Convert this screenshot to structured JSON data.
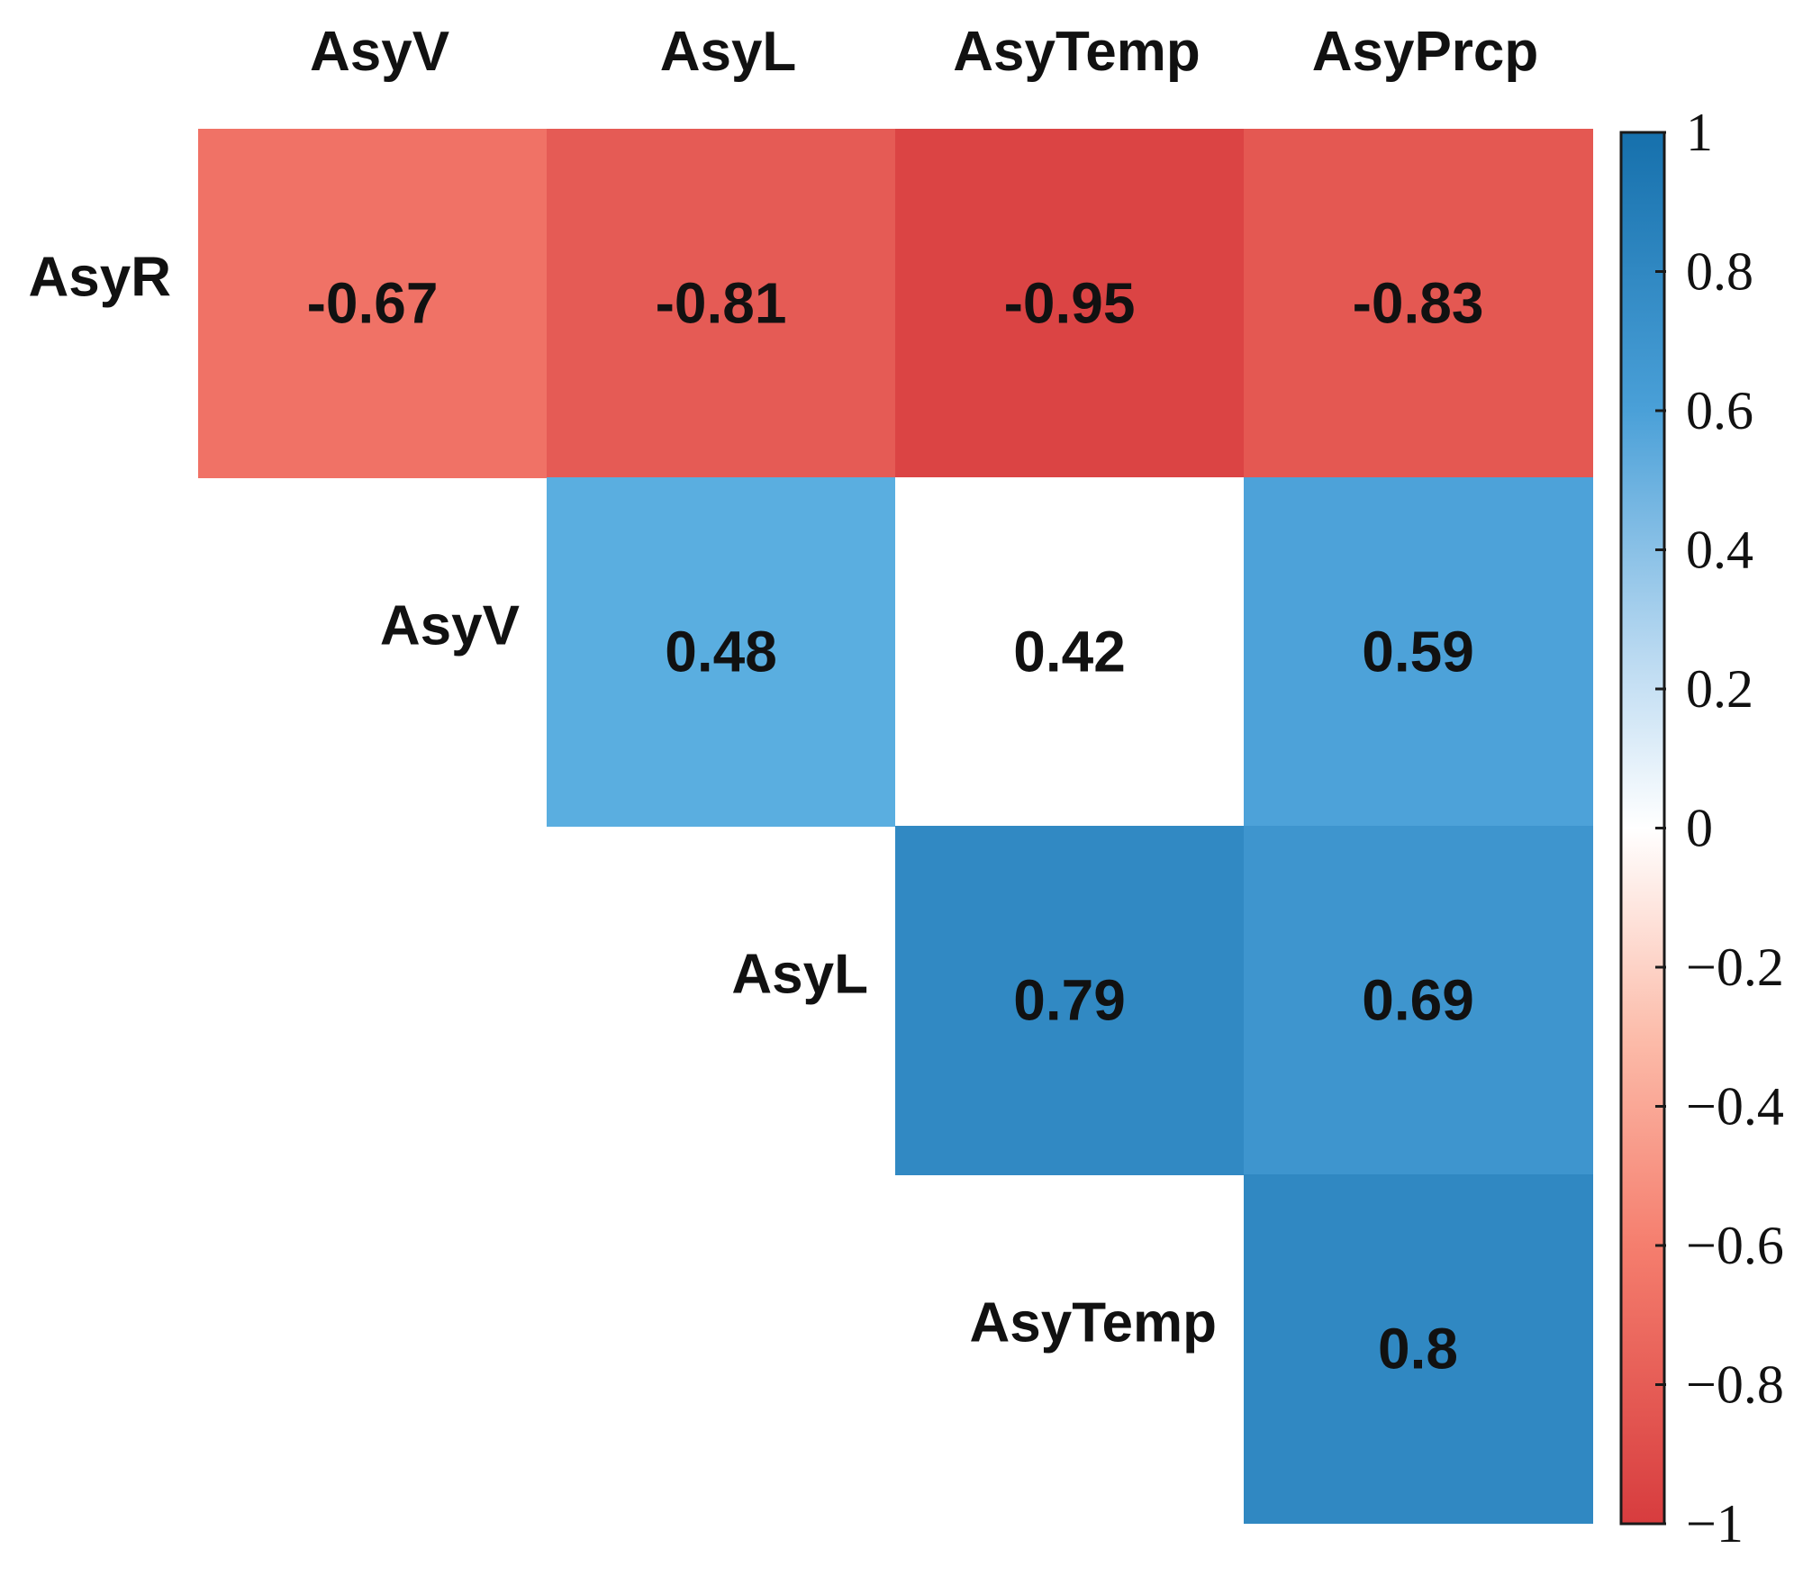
{
  "chart_data": {
    "type": "heatmap",
    "title": "",
    "columns": [
      "AsyV",
      "AsyL",
      "AsyTemp",
      "AsyPrcp"
    ],
    "rows": [
      "AsyR",
      "AsyV",
      "AsyL",
      "AsyTemp"
    ],
    "cells": [
      {
        "row": 0,
        "col": 0,
        "value": -0.67,
        "label": "-0.67"
      },
      {
        "row": 0,
        "col": 1,
        "value": -0.81,
        "label": "-0.81"
      },
      {
        "row": 0,
        "col": 2,
        "value": -0.95,
        "label": "-0.95"
      },
      {
        "row": 0,
        "col": 3,
        "value": -0.83,
        "label": "-0.83"
      },
      {
        "row": 1,
        "col": 1,
        "value": 0.48,
        "label": "0.48",
        "fill": "#5aaee0"
      },
      {
        "row": 1,
        "col": 2,
        "value": 0.42,
        "label": "0.42",
        "fill": "#ffffff"
      },
      {
        "row": 1,
        "col": 3,
        "value": 0.59,
        "label": "0.59"
      },
      {
        "row": 2,
        "col": 2,
        "value": 0.79,
        "label": "0.79"
      },
      {
        "row": 2,
        "col": 3,
        "value": 0.69,
        "label": "0.69"
      },
      {
        "row": 3,
        "col": 3,
        "value": 0.8,
        "label": "0.8"
      }
    ],
    "colorbar": {
      "range": [
        -1,
        1
      ],
      "ticks": [
        1,
        0.8,
        0.6,
        0.4,
        0.2,
        0,
        -0.2,
        -0.4,
        -0.6,
        -0.8,
        -1
      ],
      "tick_labels": [
        "1",
        "0.8",
        "0.6",
        "0.4",
        "0.2",
        "0",
        "−0.2",
        "−0.4",
        "−0.6",
        "−0.8",
        "−1"
      ],
      "stops": [
        {
          "value": -1,
          "color": "#d73c3e"
        },
        {
          "value": -0.6,
          "color": "#f57e6e"
        },
        {
          "value": -0.3,
          "color": "#fcbcaa"
        },
        {
          "value": 0,
          "color": "#ffffff"
        },
        {
          "value": 0.25,
          "color": "#b9d9f1"
        },
        {
          "value": 0.6,
          "color": "#4aa0d8"
        },
        {
          "value": 1,
          "color": "#1670ac"
        }
      ]
    }
  }
}
